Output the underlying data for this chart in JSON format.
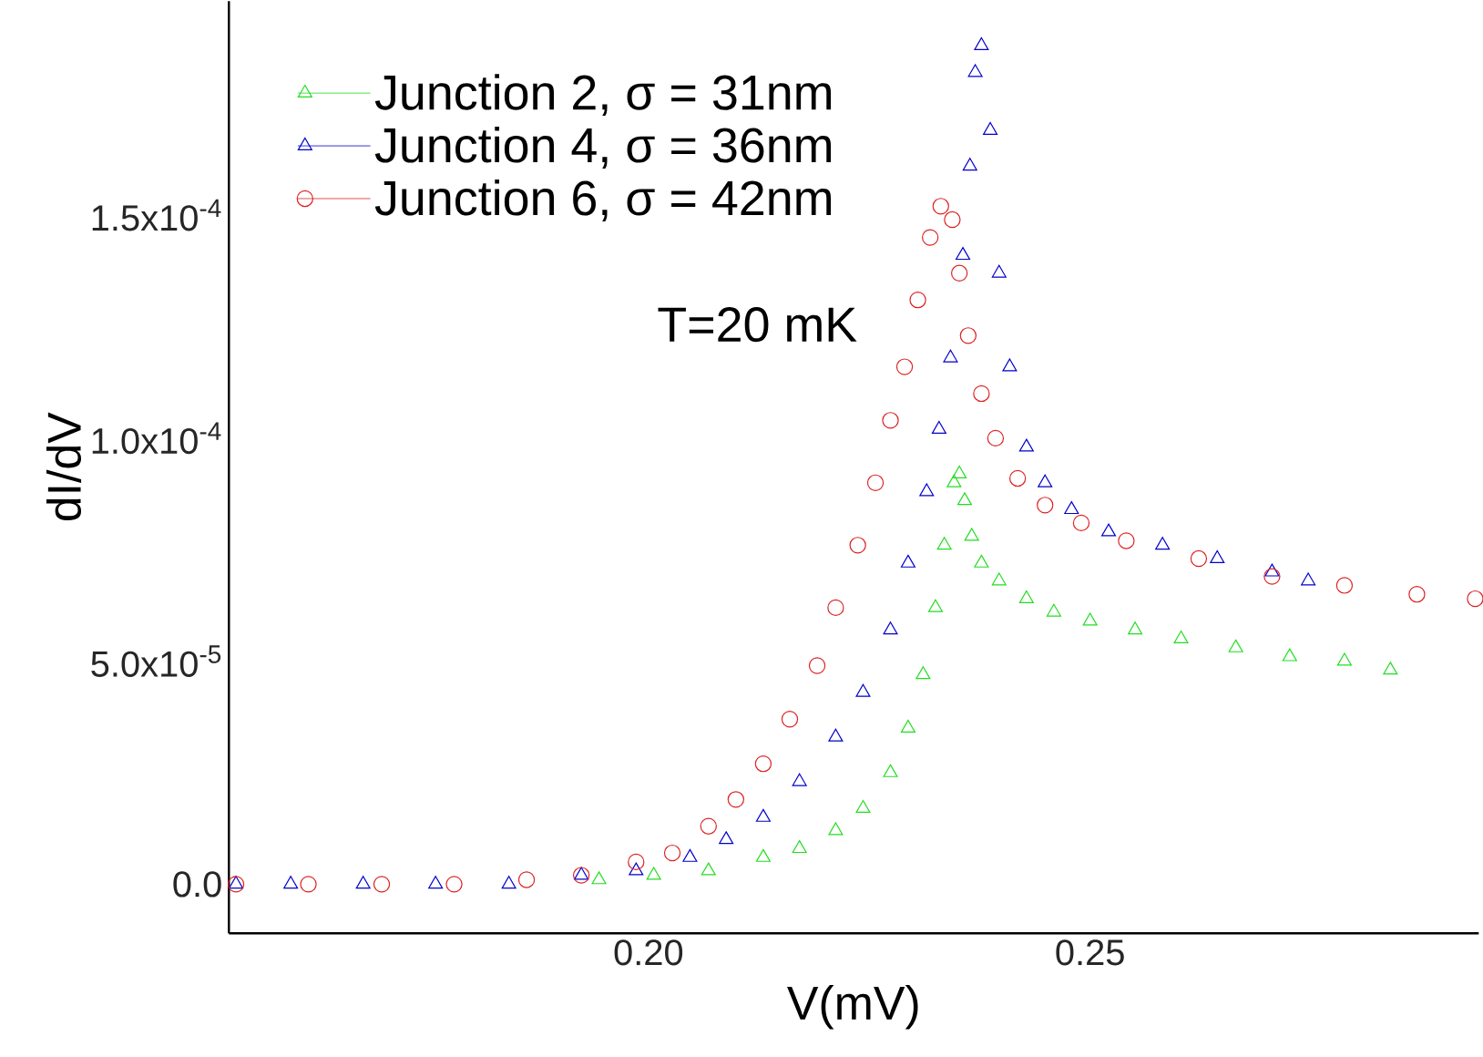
{
  "chart_data": {
    "type": "scatter",
    "xlabel": "V(mV)",
    "ylabel": "dI/dV",
    "xlim": [
      0.1525,
      0.294
    ],
    "ylim": [
      -1.1e-05,
      0.000198
    ],
    "xticks": [
      {
        "value": 0.2,
        "label": "0.20"
      },
      {
        "value": 0.25,
        "label": "0.25"
      }
    ],
    "yticks": [
      {
        "value": 0,
        "label": "0.0"
      },
      {
        "value": 5e-05,
        "label": "5.0x10$^{-5}$"
      },
      {
        "value": 0.0001,
        "label": "1.0x10$^{-4}$"
      },
      {
        "value": 0.00015,
        "label": "1.5x10$^{-4}$"
      }
    ],
    "legend": "top left",
    "grid": false,
    "annotations": [
      "T=20 mK"
    ],
    "series": [
      {
        "name": "Junction 2, σ = 31nm",
        "color": "#22dd22",
        "marker": "triangle",
        "x": [
          0.1944,
          0.2006,
          0.2068,
          0.213,
          0.2171,
          0.2212,
          0.2243,
          0.2274,
          0.2294,
          0.2311,
          0.2325,
          0.2335,
          0.2346,
          0.2352,
          0.2358,
          0.2366,
          0.2377,
          0.2397,
          0.2428,
          0.2459,
          0.25,
          0.2551,
          0.2603,
          0.2665,
          0.2726,
          0.2788,
          0.284
        ],
        "values": [
          1e-06,
          2e-06,
          3e-06,
          6e-06,
          8e-06,
          1.2e-05,
          1.7e-05,
          2.5e-05,
          3.5e-05,
          4.7e-05,
          6.2e-05,
          7.6e-05,
          9e-05,
          9.2e-05,
          8.6e-05,
          7.8e-05,
          7.2e-05,
          6.8e-05,
          6.4e-05,
          6.1e-05,
          5.9e-05,
          5.7e-05,
          5.5e-05,
          5.3e-05,
          5.1e-05,
          5e-05,
          4.8e-05
        ]
      },
      {
        "name": "Junction 4, σ = 36nm",
        "color": "#0000cc",
        "marker": "triangle",
        "x": [
          0.1533,
          0.1595,
          0.1677,
          0.1759,
          0.1842,
          0.1924,
          0.1986,
          0.2047,
          0.2088,
          0.213,
          0.2171,
          0.2212,
          0.2243,
          0.2274,
          0.2294,
          0.2315,
          0.2329,
          0.2342,
          0.2356,
          0.2364,
          0.237,
          0.2377,
          0.2387,
          0.2397,
          0.2409,
          0.2428,
          0.2449,
          0.2479,
          0.2521,
          0.2582,
          0.2644,
          0.2706,
          0.2747
        ],
        "values": [
          0,
          0,
          0,
          0,
          0,
          2e-06,
          3e-06,
          6e-06,
          1e-05,
          1.5e-05,
          2.3e-05,
          3.3e-05,
          4.3e-05,
          5.7e-05,
          7.2e-05,
          8.8e-05,
          0.000102,
          0.000118,
          0.000141,
          0.000161,
          0.000182,
          0.000188,
          0.000169,
          0.000137,
          0.000116,
          9.8e-05,
          9e-05,
          8.4e-05,
          7.9e-05,
          7.6e-05,
          7.3e-05,
          7e-05,
          6.8e-05
        ]
      },
      {
        "name": "Junction 6, σ = 42nm",
        "color": "#dd2222",
        "marker": "circle",
        "x": [
          0.1533,
          0.1615,
          0.1698,
          0.178,
          0.1862,
          0.1924,
          0.1986,
          0.2027,
          0.2068,
          0.2099,
          0.213,
          0.216,
          0.2191,
          0.2212,
          0.2237,
          0.2257,
          0.2274,
          0.229,
          0.2305,
          0.2319,
          0.2331,
          0.2344,
          0.2352,
          0.2362,
          0.2377,
          0.2393,
          0.2418,
          0.2449,
          0.249,
          0.2541,
          0.2623,
          0.2706,
          0.2788,
          0.287,
          0.2936
        ],
        "values": [
          0,
          0,
          0,
          0,
          1e-06,
          2e-06,
          5e-06,
          7e-06,
          1.3e-05,
          1.9e-05,
          2.7e-05,
          3.7e-05,
          4.9e-05,
          6.2e-05,
          7.6e-05,
          9e-05,
          0.000104,
          0.000116,
          0.000131,
          0.000145,
          0.000152,
          0.000149,
          0.000137,
          0.000123,
          0.00011,
          0.0001,
          9.1e-05,
          8.5e-05,
          8.1e-05,
          7.7e-05,
          7.3e-05,
          6.9e-05,
          6.7e-05,
          6.5e-05,
          6.4e-05
        ]
      }
    ]
  }
}
